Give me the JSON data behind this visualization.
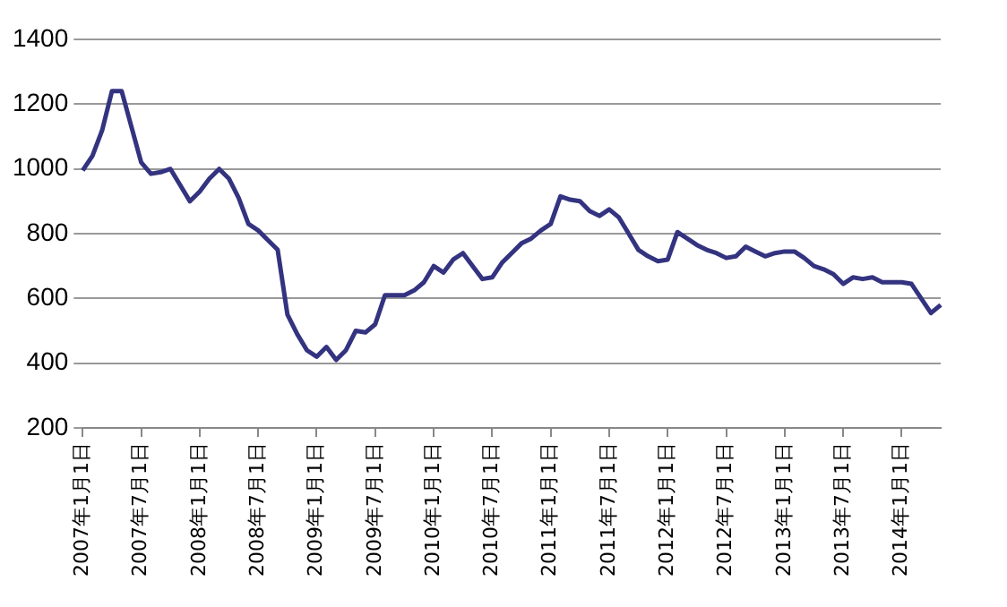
{
  "chart_data": {
    "type": "line",
    "categories": [
      "2007年1月1日",
      null,
      null,
      null,
      null,
      null,
      "2007年7月1日",
      null,
      null,
      null,
      null,
      null,
      "2008年1月1日",
      null,
      null,
      null,
      null,
      null,
      "2008年7月1日",
      null,
      null,
      null,
      null,
      null,
      "2009年1月1日",
      null,
      null,
      null,
      null,
      null,
      "2009年7月1日",
      null,
      null,
      null,
      null,
      null,
      "2010年1月1日",
      null,
      null,
      null,
      null,
      null,
      "2010年7月1日",
      null,
      null,
      null,
      null,
      null,
      "2011年1月1日",
      null,
      null,
      null,
      null,
      null,
      "2011年7月1日",
      null,
      null,
      null,
      null,
      null,
      "2012年1月1日",
      null,
      null,
      null,
      null,
      null,
      "2012年7月1日",
      null,
      null,
      null,
      null,
      null,
      "2013年1月1日",
      null,
      null,
      null,
      null,
      null,
      "2013年7月1日",
      null,
      null,
      null,
      null,
      null,
      "2014年1月1日",
      null,
      null,
      null,
      null
    ],
    "series": [
      {
        "color": "#333380",
        "values": [
          995,
          1040,
          1120,
          1240,
          1240,
          1130,
          1020,
          985,
          990,
          1000,
          950,
          900,
          930,
          970,
          1000,
          970,
          910,
          830,
          810,
          780,
          750,
          550,
          490,
          440,
          420,
          450,
          410,
          440,
          500,
          495,
          520,
          610,
          610,
          610,
          625,
          650,
          700,
          680,
          720,
          740,
          700,
          660,
          665,
          710,
          740,
          770,
          785,
          810,
          830,
          915,
          905,
          900,
          870,
          855,
          875,
          850,
          800,
          750,
          730,
          715,
          720,
          805,
          785,
          765,
          750,
          740,
          725,
          730,
          760,
          745,
          730,
          740,
          745,
          745,
          725,
          700,
          690,
          675,
          645,
          665,
          660,
          665,
          650,
          650,
          650,
          645,
          600,
          555,
          580
        ]
      }
    ],
    "ylim": [
      200,
      1400
    ],
    "yticks": [
      200,
      400,
      600,
      800,
      1000,
      1200,
      1400
    ],
    "grid": "y",
    "line_style": "solid"
  }
}
